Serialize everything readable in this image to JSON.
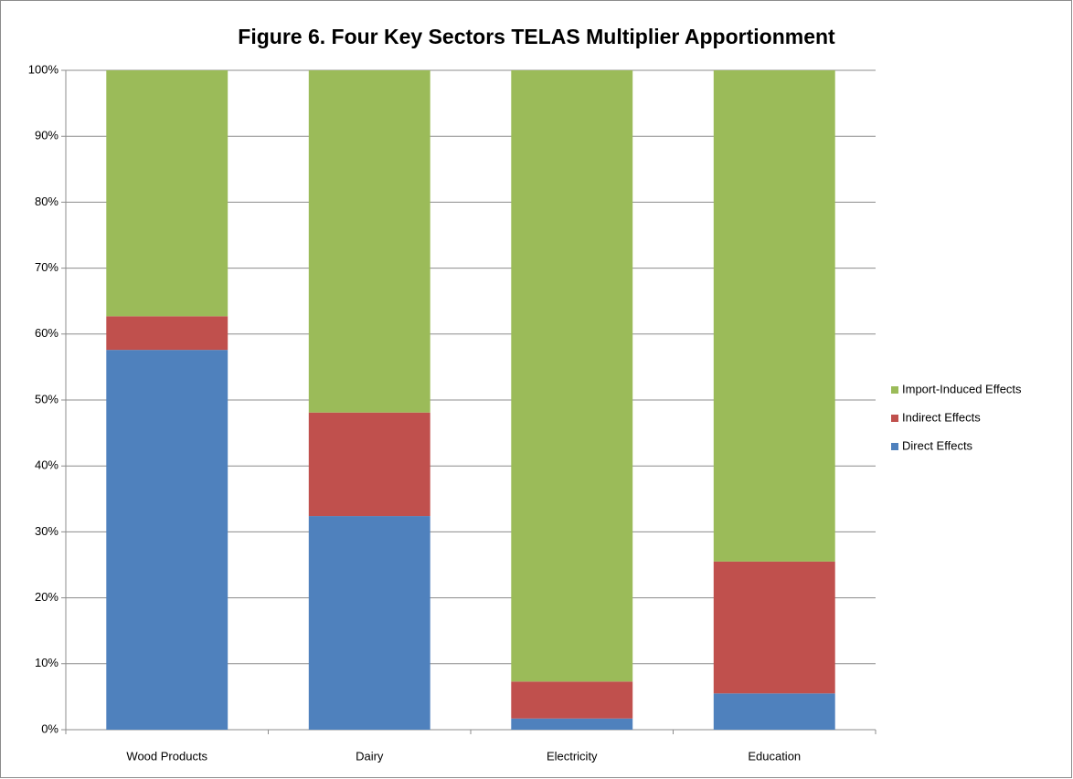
{
  "chart_data": {
    "type": "stacked_bar",
    "title": "Figure 6. Four Key Sectors TELAS Multiplier Apportionment",
    "categories": [
      "Wood Products",
      "Dairy",
      "Electricity",
      "Education"
    ],
    "series": [
      {
        "name": "Direct Effects",
        "color": "#4f81bd",
        "values": [
          57.6,
          32.4,
          1.7,
          5.5
        ]
      },
      {
        "name": "Indirect Effects",
        "color": "#c0504d",
        "values": [
          5.1,
          15.7,
          5.6,
          20.0
        ]
      },
      {
        "name": "Import-Induced Effects",
        "color": "#9bbb59",
        "values": [
          37.3,
          51.9,
          92.7,
          74.5
        ]
      }
    ],
    "ylim": [
      0,
      100
    ],
    "yticks": [
      {
        "value": 0,
        "label": "0%"
      },
      {
        "value": 10,
        "label": "10%"
      },
      {
        "value": 20,
        "label": "20%"
      },
      {
        "value": 30,
        "label": "30%"
      },
      {
        "value": 40,
        "label": "40%"
      },
      {
        "value": 50,
        "label": "50%"
      },
      {
        "value": 60,
        "label": "60%"
      },
      {
        "value": 70,
        "label": "70%"
      },
      {
        "value": 80,
        "label": "80%"
      },
      {
        "value": 90,
        "label": "90%"
      },
      {
        "value": 100,
        "label": "100%"
      }
    ],
    "grid": true,
    "legend": "right"
  }
}
